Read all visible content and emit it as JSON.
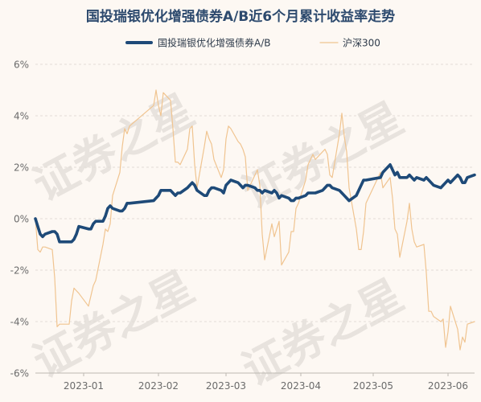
{
  "chart_data": {
    "type": "line",
    "title": "国投瑞银优化增强债券A/B近6个月累计收益率走势",
    "watermark": "证券之星",
    "ylim": [
      -6,
      6
    ],
    "yticks": [
      "6%",
      "4%",
      "2%",
      "0%",
      "-2%",
      "-4%",
      "-6%"
    ],
    "ytick_values": [
      6,
      4,
      2,
      0,
      -2,
      -4,
      -6
    ],
    "xlim": [
      "2022-12-12",
      "2023-06-12"
    ],
    "xticks": [
      {
        "label": "2023-01",
        "date": "2023-01-01"
      },
      {
        "label": "2023-02",
        "date": "2023-02-01"
      },
      {
        "label": "2023-03",
        "date": "2023-03-01"
      },
      {
        "label": "2023-04",
        "date": "2023-04-01"
      },
      {
        "label": "2023-05",
        "date": "2023-05-01"
      },
      {
        "label": "2023-06",
        "date": "2023-06-01"
      }
    ],
    "grid": true,
    "legend_position": "top",
    "series": [
      {
        "name": "国投瑞银优化增强债券A/B",
        "color": "#1e4a78",
        "points": [
          [
            "2022-12-12",
            0.0
          ],
          [
            "2022-12-13",
            -0.3
          ],
          [
            "2022-12-14",
            -0.6
          ],
          [
            "2022-12-15",
            -0.7
          ],
          [
            "2022-12-16",
            -0.6
          ],
          [
            "2022-12-19",
            -0.5
          ],
          [
            "2022-12-20",
            -0.5
          ],
          [
            "2022-12-21",
            -0.6
          ],
          [
            "2022-12-22",
            -0.9
          ],
          [
            "2022-12-23",
            -0.9
          ],
          [
            "2022-12-26",
            -0.9
          ],
          [
            "2022-12-27",
            -0.9
          ],
          [
            "2022-12-28",
            -0.8
          ],
          [
            "2022-12-29",
            -0.6
          ],
          [
            "2022-12-30",
            -0.3
          ],
          [
            "2023-01-03",
            -0.4
          ],
          [
            "2023-01-04",
            -0.4
          ],
          [
            "2023-01-05",
            -0.2
          ],
          [
            "2023-01-06",
            -0.1
          ],
          [
            "2023-01-09",
            -0.1
          ],
          [
            "2023-01-10",
            0.1
          ],
          [
            "2023-01-11",
            0.4
          ],
          [
            "2023-01-12",
            0.5
          ],
          [
            "2023-01-13",
            0.4
          ],
          [
            "2023-01-16",
            0.3
          ],
          [
            "2023-01-17",
            0.3
          ],
          [
            "2023-01-18",
            0.4
          ],
          [
            "2023-01-19",
            0.6
          ],
          [
            "2023-01-20",
            0.6
          ],
          [
            "2023-01-30",
            0.7
          ],
          [
            "2023-01-31",
            0.8
          ],
          [
            "2023-02-01",
            0.9
          ],
          [
            "2023-02-02",
            1.1
          ],
          [
            "2023-02-03",
            1.1
          ],
          [
            "2023-02-06",
            1.1
          ],
          [
            "2023-02-07",
            1.0
          ],
          [
            "2023-02-08",
            0.9
          ],
          [
            "2023-02-09",
            1.0
          ],
          [
            "2023-02-10",
            1.0
          ],
          [
            "2023-02-13",
            1.2
          ],
          [
            "2023-02-14",
            1.3
          ],
          [
            "2023-02-15",
            1.4
          ],
          [
            "2023-02-16",
            1.3
          ],
          [
            "2023-02-17",
            1.1
          ],
          [
            "2023-02-20",
            0.9
          ],
          [
            "2023-02-21",
            0.9
          ],
          [
            "2023-02-22",
            1.1
          ],
          [
            "2023-02-23",
            1.2
          ],
          [
            "2023-02-24",
            1.2
          ],
          [
            "2023-02-27",
            1.1
          ],
          [
            "2023-02-28",
            1.0
          ],
          [
            "2023-03-01",
            1.3
          ],
          [
            "2023-03-02",
            1.4
          ],
          [
            "2023-03-03",
            1.5
          ],
          [
            "2023-03-06",
            1.4
          ],
          [
            "2023-03-07",
            1.3
          ],
          [
            "2023-03-08",
            1.2
          ],
          [
            "2023-03-09",
            1.3
          ],
          [
            "2023-03-10",
            1.3
          ],
          [
            "2023-03-13",
            1.2
          ],
          [
            "2023-03-14",
            1.1
          ],
          [
            "2023-03-15",
            1.1
          ],
          [
            "2023-03-16",
            1.0
          ],
          [
            "2023-03-17",
            1.1
          ],
          [
            "2023-03-20",
            1.0
          ],
          [
            "2023-03-21",
            1.1
          ],
          [
            "2023-03-22",
            1.0
          ],
          [
            "2023-03-23",
            0.8
          ],
          [
            "2023-03-24",
            0.9
          ],
          [
            "2023-03-27",
            0.8
          ],
          [
            "2023-03-28",
            0.7
          ],
          [
            "2023-03-29",
            0.7
          ],
          [
            "2023-03-30",
            0.8
          ],
          [
            "2023-03-31",
            0.8
          ],
          [
            "2023-04-03",
            0.9
          ],
          [
            "2023-04-04",
            1.0
          ],
          [
            "2023-04-06",
            1.0
          ],
          [
            "2023-04-07",
            1.0
          ],
          [
            "2023-04-10",
            1.1
          ],
          [
            "2023-04-11",
            1.2
          ],
          [
            "2023-04-12",
            1.3
          ],
          [
            "2023-04-13",
            1.3
          ],
          [
            "2023-04-14",
            1.2
          ],
          [
            "2023-04-17",
            1.1
          ],
          [
            "2023-04-18",
            1.0
          ],
          [
            "2023-04-19",
            0.9
          ],
          [
            "2023-04-20",
            0.8
          ],
          [
            "2023-04-21",
            0.7
          ],
          [
            "2023-04-24",
            0.9
          ],
          [
            "2023-04-25",
            1.1
          ],
          [
            "2023-04-26",
            1.3
          ],
          [
            "2023-04-27",
            1.5
          ],
          [
            "2023-04-28",
            1.5
          ],
          [
            "2023-05-04",
            1.6
          ],
          [
            "2023-05-05",
            1.8
          ],
          [
            "2023-05-08",
            2.1
          ],
          [
            "2023-05-09",
            1.9
          ],
          [
            "2023-05-10",
            1.7
          ],
          [
            "2023-05-11",
            1.8
          ],
          [
            "2023-05-12",
            1.6
          ],
          [
            "2023-05-15",
            1.6
          ],
          [
            "2023-05-16",
            1.7
          ],
          [
            "2023-05-17",
            1.6
          ],
          [
            "2023-05-18",
            1.5
          ],
          [
            "2023-05-19",
            1.6
          ],
          [
            "2023-05-22",
            1.5
          ],
          [
            "2023-05-23",
            1.6
          ],
          [
            "2023-05-24",
            1.5
          ],
          [
            "2023-05-25",
            1.4
          ],
          [
            "2023-05-26",
            1.3
          ],
          [
            "2023-05-29",
            1.2
          ],
          [
            "2023-05-30",
            1.3
          ],
          [
            "2023-05-31",
            1.4
          ],
          [
            "2023-06-01",
            1.5
          ],
          [
            "2023-06-02",
            1.4
          ],
          [
            "2023-06-05",
            1.7
          ],
          [
            "2023-06-06",
            1.6
          ],
          [
            "2023-06-07",
            1.4
          ],
          [
            "2023-06-08",
            1.4
          ],
          [
            "2023-06-09",
            1.6
          ],
          [
            "2023-06-12",
            1.7
          ]
        ]
      },
      {
        "name": "沪深300",
        "color": "#f0c490",
        "points": [
          [
            "2022-12-12",
            0.0
          ],
          [
            "2022-12-13",
            -1.2
          ],
          [
            "2022-12-14",
            -1.3
          ],
          [
            "2022-12-15",
            -1.1
          ],
          [
            "2022-12-16",
            -1.1
          ],
          [
            "2022-12-19",
            -1.2
          ],
          [
            "2022-12-20",
            -2.3
          ],
          [
            "2022-12-21",
            -4.2
          ],
          [
            "2022-12-22",
            -4.1
          ],
          [
            "2022-12-23",
            -4.1
          ],
          [
            "2022-12-26",
            -4.1
          ],
          [
            "2022-12-27",
            -3.2
          ],
          [
            "2022-12-28",
            -2.7
          ],
          [
            "2022-12-29",
            -2.8
          ],
          [
            "2022-12-30",
            -2.9
          ],
          [
            "2023-01-03",
            -3.4
          ],
          [
            "2023-01-04",
            -3.0
          ],
          [
            "2023-01-05",
            -2.6
          ],
          [
            "2023-01-06",
            -2.4
          ],
          [
            "2023-01-09",
            -1.0
          ],
          [
            "2023-01-10",
            -0.4
          ],
          [
            "2023-01-11",
            -0.5
          ],
          [
            "2023-01-12",
            -0.2
          ],
          [
            "2023-01-13",
            0.9
          ],
          [
            "2023-01-16",
            1.8
          ],
          [
            "2023-01-17",
            2.8
          ],
          [
            "2023-01-18",
            3.5
          ],
          [
            "2023-01-19",
            3.3
          ],
          [
            "2023-01-20",
            3.6
          ],
          [
            "2023-01-30",
            4.4
          ],
          [
            "2023-01-31",
            5.0
          ],
          [
            "2023-02-01",
            4.4
          ],
          [
            "2023-02-02",
            4.0
          ],
          [
            "2023-02-03",
            4.9
          ],
          [
            "2023-02-06",
            4.6
          ],
          [
            "2023-02-07",
            3.5
          ],
          [
            "2023-02-08",
            2.2
          ],
          [
            "2023-02-09",
            2.2
          ],
          [
            "2023-02-10",
            2.1
          ],
          [
            "2023-02-13",
            2.7
          ],
          [
            "2023-02-14",
            3.5
          ],
          [
            "2023-02-15",
            3.6
          ],
          [
            "2023-02-16",
            2.1
          ],
          [
            "2023-02-17",
            1.2
          ],
          [
            "2023-02-20",
            2.8
          ],
          [
            "2023-02-21",
            3.4
          ],
          [
            "2023-02-22",
            3.1
          ],
          [
            "2023-02-23",
            2.9
          ],
          [
            "2023-02-24",
            2.3
          ],
          [
            "2023-02-27",
            1.6
          ],
          [
            "2023-02-28",
            1.9
          ],
          [
            "2023-03-01",
            3.1
          ],
          [
            "2023-03-02",
            3.6
          ],
          [
            "2023-03-03",
            3.5
          ],
          [
            "2023-03-06",
            3.0
          ],
          [
            "2023-03-07",
            2.9
          ],
          [
            "2023-03-08",
            2.7
          ],
          [
            "2023-03-09",
            2.4
          ],
          [
            "2023-03-10",
            1.1
          ],
          [
            "2023-03-13",
            1.7
          ],
          [
            "2023-03-14",
            1.9
          ],
          [
            "2023-03-15",
            1.3
          ],
          [
            "2023-03-16",
            -0.6
          ],
          [
            "2023-03-17",
            -1.6
          ],
          [
            "2023-03-20",
            -0.2
          ],
          [
            "2023-03-21",
            -0.7
          ],
          [
            "2023-03-22",
            -0.4
          ],
          [
            "2023-03-23",
            -0.1
          ],
          [
            "2023-03-24",
            -1.8
          ],
          [
            "2023-03-27",
            -1.3
          ],
          [
            "2023-03-28",
            -0.5
          ],
          [
            "2023-03-29",
            -0.5
          ],
          [
            "2023-03-30",
            0.4
          ],
          [
            "2023-03-31",
            0.6
          ],
          [
            "2023-04-03",
            1.5
          ],
          [
            "2023-04-04",
            2.1
          ],
          [
            "2023-04-06",
            2.5
          ],
          [
            "2023-04-07",
            2.3
          ],
          [
            "2023-04-10",
            2.6
          ],
          [
            "2023-04-11",
            2.7
          ],
          [
            "2023-04-12",
            2.5
          ],
          [
            "2023-04-13",
            1.7
          ],
          [
            "2023-04-14",
            1.6
          ],
          [
            "2023-04-17",
            3.3
          ],
          [
            "2023-04-18",
            4.1
          ],
          [
            "2023-04-19",
            3.2
          ],
          [
            "2023-04-20",
            2.6
          ],
          [
            "2023-04-21",
            1.2
          ],
          [
            "2023-04-24",
            -0.4
          ],
          [
            "2023-04-25",
            -1.2
          ],
          [
            "2023-04-26",
            -1.2
          ],
          [
            "2023-04-27",
            -0.5
          ],
          [
            "2023-04-28",
            0.6
          ],
          [
            "2023-05-04",
            1.8
          ],
          [
            "2023-05-05",
            1.2
          ],
          [
            "2023-05-08",
            1.6
          ],
          [
            "2023-05-09",
            0.8
          ],
          [
            "2023-05-10",
            -0.4
          ],
          [
            "2023-05-11",
            -0.6
          ],
          [
            "2023-05-12",
            -1.5
          ],
          [
            "2023-05-15",
            -0.1
          ],
          [
            "2023-05-16",
            0.6
          ],
          [
            "2023-05-17",
            -0.4
          ],
          [
            "2023-05-18",
            -0.9
          ],
          [
            "2023-05-19",
            -1.1
          ],
          [
            "2023-05-22",
            -1.0
          ],
          [
            "2023-05-23",
            -2.1
          ],
          [
            "2023-05-24",
            -3.6
          ],
          [
            "2023-05-25",
            -3.6
          ],
          [
            "2023-05-26",
            -3.8
          ],
          [
            "2023-05-29",
            -4.0
          ],
          [
            "2023-05-30",
            -3.9
          ],
          [
            "2023-05-31",
            -5.0
          ],
          [
            "2023-06-01",
            -4.4
          ],
          [
            "2023-06-02",
            -3.4
          ],
          [
            "2023-06-05",
            -4.3
          ],
          [
            "2023-06-06",
            -5.1
          ],
          [
            "2023-06-07",
            -4.6
          ],
          [
            "2023-06-08",
            -4.8
          ],
          [
            "2023-06-09",
            -4.1
          ],
          [
            "2023-06-12",
            -4.0
          ]
        ]
      }
    ]
  }
}
